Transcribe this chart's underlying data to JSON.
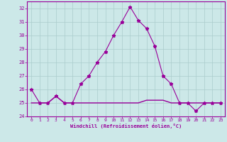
{
  "xlabel": "Windchill (Refroidissement éolien,°C)",
  "bg_color": "#cce8e8",
  "grid_color": "#aacccc",
  "line_color": "#990099",
  "x": [
    0,
    1,
    2,
    3,
    4,
    5,
    6,
    7,
    8,
    9,
    10,
    11,
    12,
    13,
    14,
    15,
    16,
    17,
    18,
    19,
    20,
    21,
    22,
    23
  ],
  "temp": [
    26.0,
    25.0,
    25.0,
    25.5,
    25.0,
    25.0,
    26.4,
    27.0,
    28.0,
    28.8,
    30.0,
    31.0,
    32.1,
    31.1,
    30.5,
    29.2,
    27.0,
    26.4,
    25.0,
    25.0,
    24.4,
    25.0,
    25.0,
    25.0
  ],
  "windchill": [
    25.0,
    25.0,
    25.0,
    25.5,
    25.0,
    25.0,
    25.0,
    25.0,
    25.0,
    25.0,
    25.0,
    25.0,
    25.0,
    25.0,
    25.2,
    25.2,
    25.2,
    25.0,
    25.0,
    25.0,
    25.0,
    25.0,
    25.0,
    25.0
  ],
  "ylim": [
    24,
    32.5
  ],
  "yticks": [
    24,
    25,
    26,
    27,
    28,
    29,
    30,
    31,
    32
  ],
  "xticks": [
    0,
    1,
    2,
    3,
    4,
    5,
    6,
    7,
    8,
    9,
    10,
    11,
    12,
    13,
    14,
    15,
    16,
    17,
    18,
    19,
    20,
    21,
    22,
    23
  ]
}
